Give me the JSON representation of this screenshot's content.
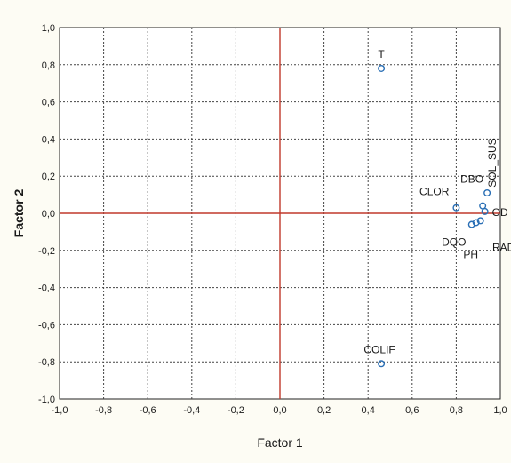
{
  "chart_data": {
    "type": "scatter",
    "title": "",
    "xlabel": "Factor 1",
    "ylabel": "Factor 2",
    "xlim": [
      -1.0,
      1.0
    ],
    "ylim": [
      -1.0,
      1.0
    ],
    "x_ticks": [
      "-1,0",
      "-0,8",
      "-0,6",
      "-0,4",
      "-0,2",
      "0,0",
      "0,2",
      "0,4",
      "0,6",
      "0,8",
      "1,0"
    ],
    "y_ticks": [
      "1,0",
      "0,8",
      "0,6",
      "0,4",
      "0,2",
      "0,0",
      "-0,2",
      "-0,4",
      "-0,6",
      "-0,8",
      "-1,0"
    ],
    "grid": true,
    "reference_lines": {
      "x": 0,
      "y": 0,
      "color": "#c0392b"
    },
    "marker_color": "#2a6fb5",
    "points": [
      {
        "label": "T",
        "x": 0.46,
        "y": 0.78
      },
      {
        "label": "COLIF",
        "x": 0.46,
        "y": -0.81
      },
      {
        "label": "CLOR",
        "x": 0.8,
        "y": 0.03
      },
      {
        "label": "DBO",
        "x": 0.92,
        "y": 0.04
      },
      {
        "label": "SOL_SUS",
        "x": 0.94,
        "y": 0.11
      },
      {
        "label": "OD",
        "x": 0.93,
        "y": 0.01
      },
      {
        "label": "DQO",
        "x": 0.87,
        "y": -0.06
      },
      {
        "label": "PH",
        "x": 0.89,
        "y": -0.05
      },
      {
        "label": "RAD",
        "x": 0.91,
        "y": -0.04
      }
    ]
  }
}
